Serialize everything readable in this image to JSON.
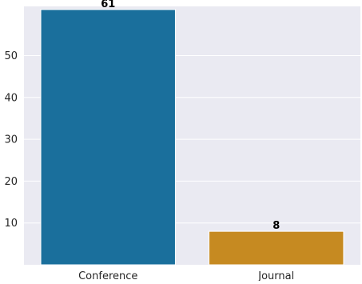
{
  "chart_data": {
    "type": "bar",
    "categories": [
      "Conference",
      "Journal"
    ],
    "values": [
      61,
      8
    ],
    "data_labels": [
      "61",
      "8"
    ],
    "title": "",
    "xlabel": "",
    "ylabel": "",
    "ylim": [
      0,
      61
    ],
    "yticks": [
      10,
      20,
      30,
      40,
      50
    ],
    "ytick_labels": [
      "10",
      "20",
      "30",
      "40",
      "50"
    ],
    "grid": true,
    "legend": "none",
    "colors": {
      "background": "#eaeaf2",
      "grid": "#ffffff",
      "bars": [
        "#1a6f9c",
        "#c68a21"
      ],
      "text": "#262626"
    }
  }
}
